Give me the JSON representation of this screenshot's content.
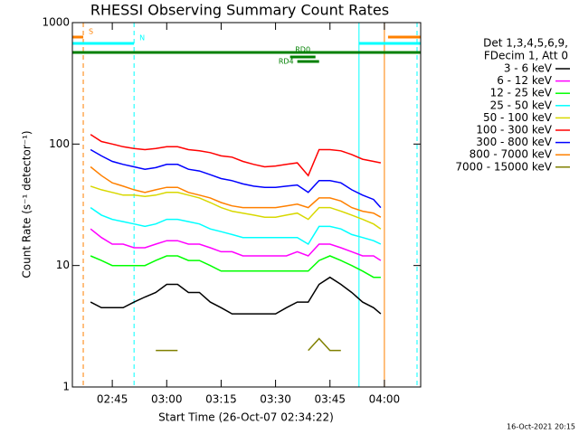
{
  "chart_data": {
    "type": "line",
    "title": "RHESSI Observing Summary Count Rates",
    "x_label": "Start Time (26-Oct-07 02:34:22)",
    "y_label": "Count Rate (s⁻¹ detector⁻¹)",
    "legend_header": [
      "Det 1,3,4,5,6,9,",
      "FDecim 1, Att 0"
    ],
    "footer": "16-Oct-2021 20:15",
    "log_y": true,
    "ylim": [
      1,
      1000
    ],
    "yticks": [
      1,
      10,
      100,
      1000
    ],
    "xlim": [
      "02:34",
      "04:10"
    ],
    "xticks": [
      "02:45",
      "03:00",
      "03:15",
      "03:30",
      "03:45",
      "04:00"
    ],
    "x": [
      "02:39",
      "02:42",
      "02:45",
      "02:48",
      "02:51",
      "02:54",
      "02:57",
      "03:00",
      "03:03",
      "03:06",
      "03:09",
      "03:12",
      "03:15",
      "03:18",
      "03:21",
      "03:24",
      "03:27",
      "03:30",
      "03:33",
      "03:36",
      "03:39",
      "03:42",
      "03:45",
      "03:48",
      "03:51",
      "03:54",
      "03:57",
      "03:59"
    ],
    "series": [
      {
        "name": "3 - 6 keV",
        "color": "#000000",
        "values": [
          5,
          4.5,
          4.5,
          4.5,
          5,
          5.5,
          6,
          7,
          7,
          6,
          6,
          5,
          4.5,
          4,
          4,
          4,
          4,
          4,
          4.5,
          5,
          5,
          7,
          8,
          7,
          6,
          5,
          4.5,
          4
        ]
      },
      {
        "name": "6 - 12 keV",
        "color": "#ff00ff",
        "values": [
          20,
          17,
          15,
          15,
          14,
          14,
          15,
          16,
          16,
          15,
          15,
          14,
          13,
          13,
          12,
          12,
          12,
          12,
          12,
          13,
          12,
          15,
          15,
          14,
          13,
          12,
          12,
          11
        ]
      },
      {
        "name": "12 - 25 keV",
        "color": "#00ff00",
        "values": [
          12,
          11,
          10,
          10,
          10,
          10,
          11,
          12,
          12,
          11,
          11,
          10,
          9,
          9,
          9,
          9,
          9,
          9,
          9,
          9,
          9,
          11,
          12,
          11,
          10,
          9,
          8,
          8
        ]
      },
      {
        "name": "25 - 50 keV",
        "color": "#00ffff",
        "values": [
          30,
          26,
          24,
          23,
          22,
          21,
          22,
          24,
          24,
          23,
          22,
          20,
          19,
          18,
          17,
          17,
          17,
          17,
          17,
          17,
          15,
          21,
          21,
          20,
          18,
          17,
          16,
          15
        ]
      },
      {
        "name": "50 - 100 keV",
        "color": "#d8d800",
        "values": [
          45,
          42,
          40,
          38,
          38,
          37,
          38,
          40,
          40,
          38,
          36,
          33,
          30,
          28,
          27,
          26,
          25,
          25,
          26,
          27,
          24,
          30,
          30,
          28,
          26,
          24,
          22,
          20
        ]
      },
      {
        "name": "100 - 300 keV",
        "color": "#ff0000",
        "values": [
          120,
          105,
          100,
          95,
          92,
          90,
          92,
          95,
          95,
          90,
          88,
          85,
          80,
          78,
          72,
          68,
          65,
          66,
          68,
          70,
          55,
          90,
          90,
          88,
          82,
          75,
          72,
          70
        ]
      },
      {
        "name": "300 - 800 keV",
        "color": "#0000ff",
        "values": [
          90,
          80,
          72,
          68,
          65,
          62,
          64,
          68,
          68,
          62,
          60,
          56,
          52,
          50,
          47,
          45,
          44,
          44,
          45,
          46,
          40,
          50,
          50,
          48,
          42,
          38,
          35,
          30
        ]
      },
      {
        "name": "800 - 7000 keV",
        "color": "#ff8000",
        "values": [
          65,
          55,
          48,
          45,
          42,
          40,
          42,
          44,
          44,
          40,
          38,
          36,
          33,
          31,
          30,
          30,
          30,
          30,
          31,
          32,
          30,
          36,
          36,
          34,
          30,
          28,
          27,
          25
        ]
      },
      {
        "name": "7000 - 15000 keV",
        "color": "#808000",
        "values": [
          null,
          null,
          null,
          null,
          null,
          null,
          2,
          2,
          2,
          null,
          null,
          null,
          null,
          null,
          null,
          null,
          null,
          null,
          null,
          null,
          2,
          2.5,
          2,
          2,
          null,
          null,
          null,
          null
        ]
      }
    ],
    "flags": [
      {
        "label": "S",
        "color": "#ff8000",
        "intervals": [
          [
            "02:34",
            "02:37"
          ],
          [
            "04:01",
            "04:10"
          ]
        ]
      },
      {
        "label": "N",
        "color": "#00ffff",
        "intervals": [
          [
            "02:34",
            "02:51"
          ],
          [
            "03:53",
            "04:10"
          ]
        ]
      },
      {
        "color": "#008000",
        "intervals": [
          [
            "02:34",
            "04:10"
          ]
        ]
      },
      {
        "label": "RD0",
        "color": "#008000",
        "intervals": [
          [
            "03:34",
            "03:41"
          ]
        ]
      },
      {
        "label": "RD4",
        "color": "#008000",
        "intervals": [
          [
            "03:36",
            "03:42"
          ]
        ]
      }
    ],
    "vlines": [
      {
        "x": "02:34",
        "color": "#00ffff",
        "dash": false
      },
      {
        "x": "02:37",
        "color": "#ff8000",
        "dash": true
      },
      {
        "x": "02:51",
        "color": "#00ffff",
        "dash": true
      },
      {
        "x": "03:53",
        "color": "#00ffff",
        "dash": false
      },
      {
        "x": "04:00",
        "color": "#ff8000",
        "dash": false
      },
      {
        "x": "04:09",
        "color": "#00ffff",
        "dash": true
      }
    ]
  }
}
